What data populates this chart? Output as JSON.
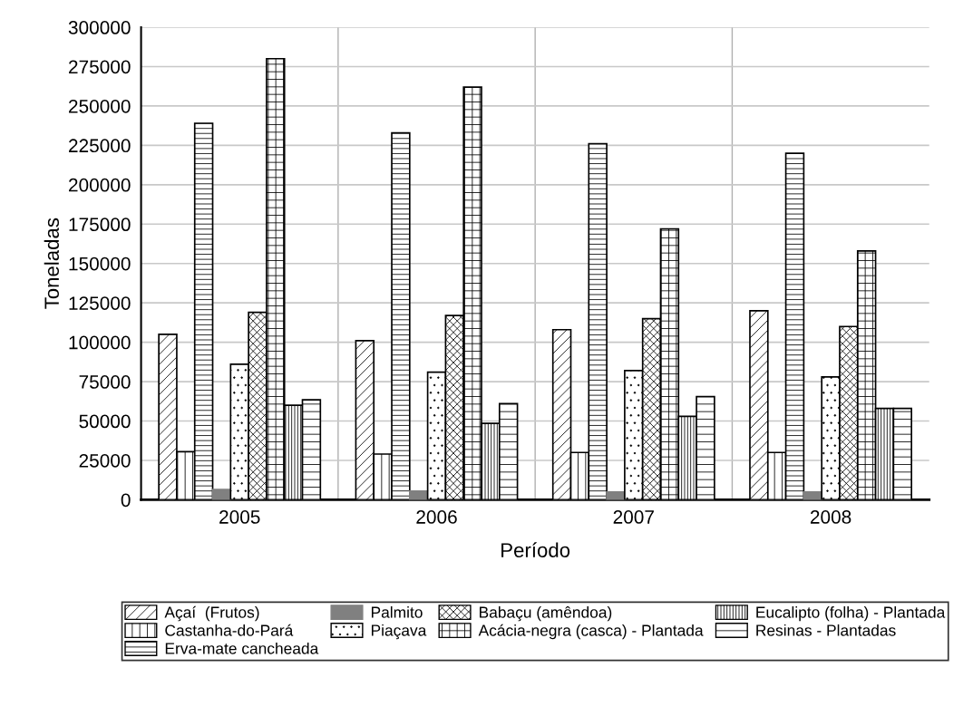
{
  "chart_data": {
    "type": "bar",
    "xlabel": "Período",
    "ylabel": "Toneladas",
    "categories": [
      "2005",
      "2006",
      "2007",
      "2008"
    ],
    "series": [
      {
        "name": "Açaí  (Frutos)",
        "color": "#000000",
        "values": [
          105000,
          101000,
          108000,
          120000
        ]
      },
      {
        "name": "Castanha-do-Pará",
        "color": "#000000",
        "values": [
          30500,
          29000,
          30000,
          30000
        ]
      },
      {
        "name": "Erva-mate cancheada",
        "color": "#000000",
        "values": [
          239000,
          233000,
          226000,
          220000
        ]
      },
      {
        "name": "Palmito",
        "color": "#808080",
        "values": [
          6500,
          5500,
          5000,
          5000
        ]
      },
      {
        "name": "Piaçava",
        "color": "#000000",
        "values": [
          86000,
          81000,
          82000,
          78000
        ]
      },
      {
        "name": "Babaçu (amêndoa)",
        "color": "#000000",
        "values": [
          119000,
          117000,
          115000,
          110000
        ]
      },
      {
        "name": "Acácia-negra (casca) - Plantada",
        "color": "#000000",
        "values": [
          280000,
          262000,
          172000,
          158000
        ]
      },
      {
        "name": "Eucalipto (folha) - Plantada",
        "color": "#000000",
        "values": [
          60000,
          48500,
          53000,
          58000
        ]
      },
      {
        "name": "Resinas - Plantadas",
        "color": "#000000",
        "values": [
          63500,
          61000,
          65500,
          58000
        ]
      }
    ],
    "ylim": [
      0,
      300000
    ],
    "yticks": [
      0,
      25000,
      50000,
      75000,
      100000,
      125000,
      150000,
      175000,
      200000,
      225000,
      250000,
      275000,
      300000
    ],
    "grid": true,
    "legend": "bottom"
  }
}
